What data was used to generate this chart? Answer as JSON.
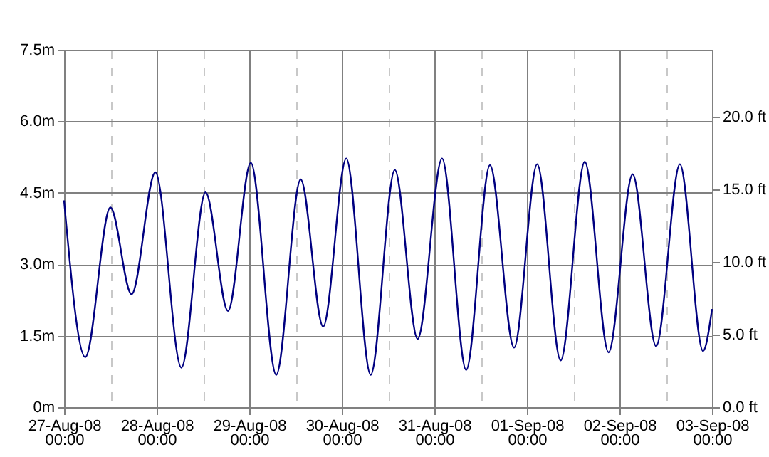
{
  "chart_data": {
    "type": "line",
    "x": [
      "--08-27T00:00",
      "--08-27T05:30",
      "--08-27T12:00",
      "--08-27T17:30",
      "--08-27T23:40",
      "--08-28T06:25",
      "--08-28T12:40",
      "--08-28T18:30",
      "--08-29T00:25",
      "--08-29T07:00",
      "--08-29T13:20",
      "--08-29T19:10",
      "--08-30T01:10",
      "--08-30T07:30",
      "--08-30T13:45",
      "--08-30T19:40",
      "--08-31T02:00",
      "--08-31T08:15",
      "--08-31T14:25",
      "--08-31T20:40",
      "--09-01T02:40",
      "--09-01T08:45",
      "--09-01T15:00",
      "--09-01T21:10",
      "--09-02T03:25",
      "--09-02T09:30",
      "--09-02T15:40",
      "--09-02T21:40",
      "--09-03T00:00"
    ],
    "series": [
      {
        "color": "#000080",
        "values": [
          4.34,
          1.05,
          4.19,
          2.37,
          4.93,
          0.83,
          4.51,
          2.02,
          5.13,
          0.68,
          4.78,
          1.69,
          5.22,
          0.68,
          4.98,
          1.43,
          5.22,
          0.78,
          5.08,
          1.25,
          5.1,
          0.98,
          5.15,
          1.15,
          4.89,
          1.28,
          5.1,
          1.18,
          2.06
        ]
      }
    ],
    "xlim": [
      "--08-27T00:00",
      "--09-03T00:00"
    ],
    "xticks": [
      {
        "value": "--08-27T00:00",
        "label": "27-Aug-08\n00:00"
      },
      {
        "value": "--08-27T12:00",
        "label": null
      },
      {
        "value": "--08-28T00:00",
        "label": "28-Aug-08\n00:00"
      },
      {
        "value": "--08-28T12:00",
        "label": null
      },
      {
        "value": "--08-29T00:00",
        "label": "29-Aug-08\n00:00"
      },
      {
        "value": "--08-29T12:00",
        "label": null
      },
      {
        "value": "--08-30T00:00",
        "label": "30-Aug-08\n00:00"
      },
      {
        "value": "--08-30T12:00",
        "label": null
      },
      {
        "value": "--08-31T00:00",
        "label": "31-Aug-08\n00:00"
      },
      {
        "value": "--08-31T12:00",
        "label": null
      },
      {
        "value": "--09-01T00:00",
        "label": "01-Sep-08\n00:00"
      },
      {
        "value": "--09-01T12:00",
        "label": null
      },
      {
        "value": "--09-02T00:00",
        "label": "02-Sep-08\n00:00"
      },
      {
        "value": "--09-02T12:00",
        "label": null
      },
      {
        "value": "--09-03T00:00",
        "label": "03-Sep-08\n00:00"
      }
    ],
    "ylim": [
      0,
      7.5
    ],
    "yticks": [
      {
        "value": 0,
        "label": "0m"
      },
      {
        "value": 1.5,
        "label": "1.5m"
      },
      {
        "value": 3,
        "label": "3.0m"
      },
      {
        "value": 4.5,
        "label": "4.5m"
      },
      {
        "value": 6,
        "label": "6.0m"
      },
      {
        "value": 7.5,
        "label": "7.5m"
      }
    ],
    "y2lim": [
      0,
      24.606
    ],
    "y2ticks": [
      {
        "value": 0,
        "label": "0.0 ft"
      },
      {
        "value": 5,
        "label": "5.0 ft"
      },
      {
        "value": 10,
        "label": "10.0 ft"
      },
      {
        "value": 15,
        "label": "15.0 ft"
      },
      {
        "value": 20,
        "label": "20.0 ft"
      }
    ],
    "grid": true,
    "line_style": "solid"
  }
}
